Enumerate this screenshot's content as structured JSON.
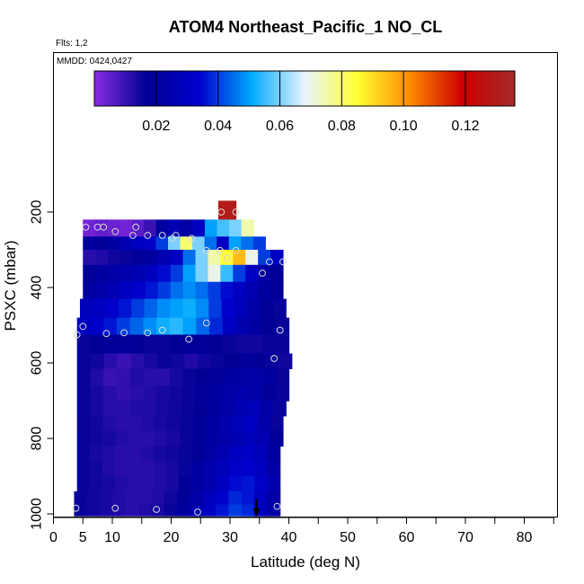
{
  "chart_data": {
    "type": "heatmap",
    "title": "ATOM4 Northeast_Pacific_1 NO_CL",
    "annotations": [
      "Flts: 1,2",
      "MMDD: 0424,0427"
    ],
    "xlabel": "Latitude (deg N)",
    "ylabel": "PSXC (mbar)",
    "xlim": [
      0,
      85
    ],
    "ylim": [
      1000,
      0
    ],
    "x_ticks": [
      0,
      5,
      10,
      20,
      30,
      40,
      50,
      60,
      70,
      80
    ],
    "y_ticks": [
      200,
      400,
      600,
      800,
      1000
    ],
    "colorbar": {
      "range": [
        0,
        0.136
      ],
      "ticks": [
        0.02,
        0.04,
        0.06,
        0.08,
        0.1,
        0.12
      ],
      "tick_labels": [
        "0.02",
        "0.04",
        "0.06",
        "0.08",
        "0.10",
        "0.12"
      ],
      "colors": [
        "#8a2be2",
        "#000096",
        "#0000cd",
        "#00aaff",
        "#e8f4ff",
        "#ffff33",
        "#ff8c00",
        "#cc0000",
        "#a52a2a"
      ]
    },
    "layers": [
      {
        "p_top": 170,
        "p_bot": 220,
        "lat_min": 28,
        "lat_max": 31,
        "values": [
          0.13
        ]
      },
      {
        "p_top": 220,
        "p_bot": 265,
        "lat_min": 5,
        "lat_max": 34,
        "values": [
          0.003,
          0.005,
          0.004,
          0.003,
          0.006,
          0.01,
          0.02,
          0.025,
          0.022,
          0.03,
          0.05,
          0.056,
          0.06,
          0.075
        ]
      },
      {
        "p_top": 265,
        "p_bot": 300,
        "lat_min": 5,
        "lat_max": 36,
        "values": [
          0.02,
          0.018,
          0.02,
          0.025,
          0.03,
          0.032,
          0.04,
          0.06,
          0.08,
          0.06,
          0.045,
          0.03,
          0.05,
          0.045,
          0.04
        ]
      },
      {
        "p_top": 300,
        "p_bot": 340,
        "lat_min": 5,
        "lat_max": 39,
        "values": [
          0.012,
          0.013,
          0.015,
          0.016,
          0.018,
          0.02,
          0.025,
          0.03,
          0.045,
          0.06,
          0.075,
          0.085,
          0.095,
          0.07,
          0.04,
          0.03
        ]
      },
      {
        "p_top": 340,
        "p_bot": 385,
        "lat_min": 5,
        "lat_max": 39,
        "values": [
          0.018,
          0.02,
          0.022,
          0.024,
          0.026,
          0.03,
          0.035,
          0.04,
          0.05,
          0.06,
          0.07,
          0.055,
          0.04,
          0.03,
          0.02,
          0.018
        ]
      },
      {
        "p_top": 385,
        "p_bot": 430,
        "lat_min": 5,
        "lat_max": 39,
        "values": [
          0.02,
          0.023,
          0.026,
          0.03,
          0.033,
          0.036,
          0.04,
          0.045,
          0.048,
          0.045,
          0.04,
          0.035,
          0.03,
          0.025,
          0.02,
          0.018
        ]
      },
      {
        "p_top": 430,
        "p_bot": 480,
        "lat_min": 4.5,
        "lat_max": 39.5,
        "values": [
          0.028,
          0.03,
          0.033,
          0.036,
          0.04,
          0.044,
          0.048,
          0.05,
          0.052,
          0.048,
          0.04,
          0.034,
          0.028,
          0.022,
          0.018,
          0.016
        ]
      },
      {
        "p_top": 480,
        "p_bot": 525,
        "lat_min": 4,
        "lat_max": 40,
        "values": [
          0.03,
          0.033,
          0.036,
          0.04,
          0.044,
          0.048,
          0.052,
          0.054,
          0.05,
          0.044,
          0.038,
          0.03,
          0.024,
          0.02,
          0.017,
          0.016
        ]
      },
      {
        "p_top": 525,
        "p_bot": 575,
        "lat_min": 4,
        "lat_max": 40,
        "values": [
          0.016,
          0.017,
          0.018,
          0.018,
          0.017,
          0.016,
          0.016,
          0.017,
          0.018,
          0.018,
          0.017,
          0.016,
          0.015,
          0.015,
          0.016,
          0.016
        ]
      },
      {
        "p_top": 575,
        "p_bot": 615,
        "lat_min": 4,
        "lat_max": 40.5,
        "values": [
          0.016,
          0.015,
          0.012,
          0.01,
          0.012,
          0.014,
          0.016,
          0.015,
          0.013,
          0.015,
          0.016,
          0.017,
          0.018,
          0.017,
          0.016,
          0.015
        ]
      },
      {
        "p_top": 615,
        "p_bot": 660,
        "lat_min": 4,
        "lat_max": 40,
        "values": [
          0.016,
          0.013,
          0.01,
          0.011,
          0.013,
          0.012,
          0.012,
          0.014,
          0.016,
          0.017,
          0.018,
          0.02,
          0.021,
          0.022,
          0.02,
          0.016
        ]
      },
      {
        "p_top": 660,
        "p_bot": 700,
        "lat_min": 4,
        "lat_max": 40,
        "values": [
          0.016,
          0.014,
          0.012,
          0.011,
          0.012,
          0.013,
          0.014,
          0.015,
          0.016,
          0.018,
          0.02,
          0.022,
          0.024,
          0.022,
          0.018,
          0.016
        ]
      },
      {
        "p_top": 700,
        "p_bot": 740,
        "lat_min": 4,
        "lat_max": 39.5,
        "values": [
          0.016,
          0.014,
          0.012,
          0.012,
          0.013,
          0.013,
          0.014,
          0.015,
          0.016,
          0.017,
          0.019,
          0.022,
          0.026,
          0.028,
          0.022,
          0.016
        ]
      },
      {
        "p_top": 740,
        "p_bot": 780,
        "lat_min": 4,
        "lat_max": 39,
        "values": [
          0.016,
          0.015,
          0.013,
          0.012,
          0.012,
          0.013,
          0.014,
          0.015,
          0.016,
          0.018,
          0.02,
          0.024,
          0.028,
          0.03,
          0.024,
          0.016
        ]
      },
      {
        "p_top": 780,
        "p_bot": 820,
        "lat_min": 4,
        "lat_max": 39,
        "values": [
          0.016,
          0.015,
          0.014,
          0.013,
          0.012,
          0.012,
          0.013,
          0.014,
          0.016,
          0.018,
          0.02,
          0.023,
          0.026,
          0.028,
          0.025,
          0.018
        ]
      },
      {
        "p_top": 820,
        "p_bot": 860,
        "lat_min": 4,
        "lat_max": 38.5,
        "values": [
          0.016,
          0.014,
          0.013,
          0.012,
          0.012,
          0.013,
          0.014,
          0.015,
          0.016,
          0.018,
          0.021,
          0.025,
          0.03,
          0.032,
          0.028,
          0.02
        ]
      },
      {
        "p_top": 860,
        "p_bot": 900,
        "lat_min": 4,
        "lat_max": 38.5,
        "values": [
          0.016,
          0.015,
          0.013,
          0.012,
          0.012,
          0.012,
          0.013,
          0.014,
          0.016,
          0.02,
          0.024,
          0.028,
          0.032,
          0.034,
          0.03,
          0.022
        ]
      },
      {
        "p_top": 900,
        "p_bot": 940,
        "lat_min": 4,
        "lat_max": 38.5,
        "values": [
          0.016,
          0.015,
          0.014,
          0.013,
          0.012,
          0.012,
          0.013,
          0.014,
          0.017,
          0.02,
          0.024,
          0.03,
          0.035,
          0.036,
          0.032,
          0.024
        ]
      },
      {
        "p_top": 940,
        "p_bot": 975,
        "lat_min": 3.5,
        "lat_max": 38.5,
        "values": [
          0.016,
          0.015,
          0.014,
          0.013,
          0.012,
          0.012,
          0.013,
          0.015,
          0.018,
          0.022,
          0.028,
          0.034,
          0.038,
          0.036,
          0.03,
          0.022
        ]
      },
      {
        "p_top": 975,
        "p_bot": 1005,
        "lat_min": 3.5,
        "lat_max": 38.5,
        "values": [
          0.016,
          0.015,
          0.014,
          0.013,
          0.012,
          0.013,
          0.014,
          0.016,
          0.02,
          0.025,
          0.03,
          0.036,
          0.04,
          0.038,
          0.03,
          0.022
        ]
      }
    ],
    "points": [
      {
        "lat": 28.5,
        "p": 200
      },
      {
        "lat": 31,
        "p": 200
      },
      {
        "lat": 5.5,
        "p": 240
      },
      {
        "lat": 7.5,
        "p": 240
      },
      {
        "lat": 8.5,
        "p": 240
      },
      {
        "lat": 14,
        "p": 240
      },
      {
        "lat": 10.5,
        "p": 252
      },
      {
        "lat": 13.5,
        "p": 262
      },
      {
        "lat": 16,
        "p": 262
      },
      {
        "lat": 18.5,
        "p": 262
      },
      {
        "lat": 20.8,
        "p": 262
      },
      {
        "lat": 20.2,
        "p": 270
      },
      {
        "lat": 23.5,
        "p": 270
      },
      {
        "lat": 26,
        "p": 302
      },
      {
        "lat": 28.3,
        "p": 302
      },
      {
        "lat": 31,
        "p": 302
      },
      {
        "lat": 29.5,
        "p": 322
      },
      {
        "lat": 36.7,
        "p": 332
      },
      {
        "lat": 39,
        "p": 332
      },
      {
        "lat": 35.5,
        "p": 362
      },
      {
        "lat": 5,
        "p": 503
      },
      {
        "lat": 4,
        "p": 525
      },
      {
        "lat": 9,
        "p": 522
      },
      {
        "lat": 12,
        "p": 520
      },
      {
        "lat": 16,
        "p": 520
      },
      {
        "lat": 18.5,
        "p": 513
      },
      {
        "lat": 23,
        "p": 537
      },
      {
        "lat": 26,
        "p": 494
      },
      {
        "lat": 38.5,
        "p": 513
      },
      {
        "lat": 37.5,
        "p": 588
      },
      {
        "lat": 3.8,
        "p": 985
      },
      {
        "lat": 10.5,
        "p": 985
      },
      {
        "lat": 17.5,
        "p": 988
      },
      {
        "lat": 24.5,
        "p": 995
      },
      {
        "lat": 38,
        "p": 980
      }
    ],
    "marker": {
      "lat": 34.5,
      "p_from": 960,
      "p_to": 1005
    }
  }
}
